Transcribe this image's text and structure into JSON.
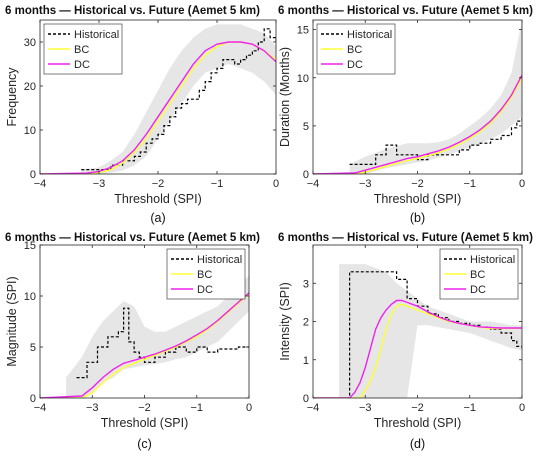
{
  "chart_data": [
    {
      "type": "line",
      "title": "6 months — Historical vs. Future (Aemet 5 km)",
      "xlabel": "Threshold (SPI)",
      "ylabel": "Frequency",
      "caption": "(a)",
      "xlim": [
        -4,
        0
      ],
      "ylim": [
        0,
        35
      ],
      "xticks": [
        -4,
        -3,
        -2,
        -1,
        0
      ],
      "yticks": [
        0,
        10,
        20,
        30
      ],
      "legend_position": "top-left",
      "band": {
        "x": [
          -3.3,
          -3.0,
          -2.8,
          -2.6,
          -2.4,
          -2.2,
          -2.0,
          -1.8,
          -1.6,
          -1.4,
          -1.2,
          -1.0,
          -0.8,
          -0.6,
          -0.4,
          -0.2,
          0.0
        ],
        "upper": [
          1,
          1.5,
          3,
          5,
          9,
          14,
          19,
          24,
          28,
          31,
          33,
          34,
          34,
          34,
          33,
          32,
          29
        ],
        "lower": [
          0,
          0,
          0.3,
          0.8,
          2,
          4,
          8,
          12,
          16,
          20,
          23,
          24,
          25,
          24,
          23,
          21,
          18
        ]
      },
      "series": [
        {
          "name": "Historical",
          "style": "dashed",
          "color": "#000000",
          "step": true,
          "x": [
            -3.3,
            -3.1,
            -2.8,
            -2.6,
            -2.4,
            -2.3,
            -2.2,
            -2.1,
            -2.0,
            -1.9,
            -1.8,
            -1.7,
            -1.6,
            -1.5,
            -1.4,
            -1.3,
            -1.2,
            -1.1,
            -1.0,
            -0.9,
            -0.8,
            -0.7,
            -0.6,
            -0.5,
            -0.4,
            -0.3,
            -0.2,
            -0.1,
            0.0
          ],
          "y": [
            1,
            1,
            2,
            3,
            4,
            5,
            7,
            8,
            9,
            11,
            13,
            15,
            16,
            17,
            17,
            19,
            21,
            23,
            24,
            26,
            26,
            25,
            26,
            27,
            28,
            30,
            33,
            31,
            30
          ]
        },
        {
          "name": "BC",
          "style": "solid",
          "color": "#ffff33",
          "x": [
            -4.0,
            -3.2,
            -3.0,
            -2.8,
            -2.6,
            -2.4,
            -2.2,
            -2.0,
            -1.8,
            -1.6,
            -1.4,
            -1.2,
            -1.0,
            -0.8,
            -0.6,
            -0.4,
            -0.2,
            0.0
          ],
          "y": [
            0,
            0,
            0.3,
            1,
            2.5,
            5,
            8,
            12,
            16,
            20,
            24,
            27,
            29,
            30,
            30,
            29.5,
            28,
            26
          ]
        },
        {
          "name": "DC",
          "style": "solid",
          "color": "#ee22ee",
          "x": [
            -4.0,
            -3.2,
            -3.0,
            -2.8,
            -2.6,
            -2.4,
            -2.2,
            -2.0,
            -1.8,
            -1.6,
            -1.4,
            -1.2,
            -1.0,
            -0.8,
            -0.6,
            -0.4,
            -0.2,
            0.0
          ],
          "y": [
            0,
            0.2,
            0.6,
            1.5,
            3,
            5.5,
            9,
            13,
            17,
            21,
            25,
            28,
            29.5,
            30,
            30,
            29.5,
            28,
            25.5
          ]
        }
      ]
    },
    {
      "type": "line",
      "title": "6 months — Historical vs. Future (Aemet 5 km)",
      "xlabel": "Threshold (SPI)",
      "ylabel": "Duration (Months)",
      "caption": "(b)",
      "xlim": [
        -4,
        0
      ],
      "ylim": [
        0,
        16
      ],
      "xticks": [
        -4,
        -3,
        -2,
        -1,
        0
      ],
      "yticks": [
        0,
        5,
        10,
        15
      ],
      "legend_position": "top-left",
      "band": {
        "x": [
          -3.3,
          -3.0,
          -2.8,
          -2.6,
          -2.4,
          -2.2,
          -2.0,
          -1.8,
          -1.6,
          -1.4,
          -1.2,
          -1.0,
          -0.8,
          -0.6,
          -0.4,
          -0.2,
          0.0
        ],
        "upper": [
          1,
          1.8,
          2.2,
          2.6,
          2.9,
          3.2,
          3.2,
          3.2,
          3.3,
          3.6,
          4.2,
          5,
          5.8,
          6.8,
          8.2,
          10.5,
          16
        ],
        "lower": [
          0,
          0,
          0.3,
          0.6,
          0.8,
          1.0,
          1.2,
          1.4,
          1.7,
          2.0,
          2.4,
          2.8,
          3.2,
          3.6,
          4.2,
          5.0,
          6.0
        ]
      },
      "series": [
        {
          "name": "Historical",
          "style": "dashed",
          "color": "#000000",
          "step": true,
          "x": [
            -3.3,
            -3.0,
            -2.8,
            -2.6,
            -2.4,
            -2.2,
            -2.0,
            -1.8,
            -1.6,
            -1.4,
            -1.2,
            -1.0,
            -0.8,
            -0.6,
            -0.4,
            -0.2,
            -0.1,
            0.0
          ],
          "y": [
            1,
            1,
            2,
            3,
            2,
            2,
            1.5,
            2,
            2,
            2,
            2.5,
            3,
            3.2,
            3.6,
            4,
            4.8,
            5.5,
            6
          ]
        },
        {
          "name": "BC",
          "style": "solid",
          "color": "#ffff33",
          "x": [
            -4.0,
            -3.2,
            -3.0,
            -2.8,
            -2.6,
            -2.4,
            -2.2,
            -2.0,
            -1.8,
            -1.6,
            -1.4,
            -1.2,
            -1.0,
            -0.8,
            -0.6,
            -0.4,
            -0.2,
            0.0
          ],
          "y": [
            0,
            0,
            0.2,
            0.5,
            0.8,
            1.1,
            1.4,
            1.6,
            1.9,
            2.2,
            2.6,
            3.1,
            3.7,
            4.4,
            5.3,
            6.5,
            8.0,
            10.0
          ]
        },
        {
          "name": "DC",
          "style": "solid",
          "color": "#ee22ee",
          "x": [
            -4.0,
            -3.2,
            -3.0,
            -2.8,
            -2.6,
            -2.4,
            -2.2,
            -2.0,
            -1.8,
            -1.6,
            -1.4,
            -1.2,
            -1.0,
            -0.8,
            -0.6,
            -0.4,
            -0.2,
            0.0
          ],
          "y": [
            0,
            0.1,
            0.4,
            0.7,
            1.0,
            1.3,
            1.6,
            1.8,
            2.1,
            2.4,
            2.8,
            3.3,
            3.9,
            4.6,
            5.5,
            6.7,
            8.2,
            10.3
          ]
        }
      ]
    },
    {
      "type": "line",
      "title": "6 months — Historical vs. Future (Aemet 5 km)",
      "xlabel": "Threshold (SPI)",
      "ylabel": "Magnitude (SPI)",
      "caption": "(c)",
      "xlim": [
        -4,
        0
      ],
      "ylim": [
        0,
        15
      ],
      "xticks": [
        -4,
        -3,
        -2,
        -1,
        0
      ],
      "yticks": [
        0,
        5,
        10,
        15
      ],
      "legend_position": "top-right",
      "band": {
        "x": [
          -3.5,
          -3.2,
          -3.0,
          -2.8,
          -2.6,
          -2.4,
          -2.2,
          -2.0,
          -1.8,
          -1.6,
          -1.4,
          -1.2,
          -1.0,
          -0.8,
          -0.6,
          -0.4,
          -0.2,
          0.0
        ],
        "upper": [
          2,
          4,
          6,
          7.5,
          8.5,
          9.5,
          9,
          7,
          6.5,
          6.5,
          7,
          7.5,
          8,
          8.5,
          9,
          10,
          11,
          12
        ],
        "lower": [
          0,
          0,
          0.5,
          1.5,
          2,
          2.8,
          3,
          3.2,
          3.3,
          3.5,
          3.8,
          4,
          4.5,
          5,
          5.5,
          6.5,
          7.5,
          8.5
        ]
      },
      "series": [
        {
          "name": "Historical",
          "style": "dashed",
          "color": "#000000",
          "step": true,
          "x": [
            -3.3,
            -3.1,
            -2.9,
            -2.7,
            -2.5,
            -2.4,
            -2.3,
            -2.2,
            -2.1,
            -2.0,
            -1.8,
            -1.6,
            -1.4,
            -1.2,
            -1.0,
            -0.8,
            -0.6,
            -0.4,
            -0.2,
            0.0
          ],
          "y": [
            2,
            3.5,
            5,
            6,
            6.5,
            8.8,
            5.5,
            4.5,
            4,
            3.5,
            4,
            4.5,
            5,
            4.5,
            5,
            4.5,
            4.8,
            4.8,
            5,
            5
          ]
        },
        {
          "name": "BC",
          "style": "solid",
          "color": "#ffff33",
          "x": [
            -4.0,
            -3.2,
            -3.0,
            -2.8,
            -2.6,
            -2.4,
            -2.2,
            -2.0,
            -1.8,
            -1.6,
            -1.4,
            -1.2,
            -1.0,
            -0.8,
            -0.6,
            -0.4,
            -0.2,
            0.0
          ],
          "y": [
            0,
            0,
            0.5,
            1.5,
            2.3,
            3.0,
            3.4,
            3.8,
            4.2,
            4.6,
            5.0,
            5.5,
            6.0,
            6.7,
            7.5,
            8.4,
            9.3,
            10.2
          ]
        },
        {
          "name": "DC",
          "style": "solid",
          "color": "#ee22ee",
          "x": [
            -4.0,
            -3.2,
            -3.0,
            -2.8,
            -2.6,
            -2.4,
            -2.2,
            -2.0,
            -1.8,
            -1.6,
            -1.4,
            -1.2,
            -1.0,
            -0.8,
            -0.6,
            -0.4,
            -0.2,
            0.0
          ],
          "y": [
            0,
            0.2,
            1.0,
            2.0,
            2.8,
            3.4,
            3.7,
            4.0,
            4.3,
            4.7,
            5.1,
            5.6,
            6.2,
            6.8,
            7.6,
            8.5,
            9.4,
            10.3
          ]
        }
      ]
    },
    {
      "type": "line",
      "title": "6 months — Historical vs. Future (Aemet 5 km)",
      "xlabel": "Threshold (SPI)",
      "ylabel": "Intensity (SPI)",
      "caption": "(d)",
      "xlim": [
        -4,
        0
      ],
      "ylim": [
        0,
        4
      ],
      "xticks": [
        -4,
        -3,
        -2,
        -1,
        0
      ],
      "yticks": [
        0,
        1,
        2,
        3
      ],
      "legend_position": "top-right",
      "band": {
        "x": [
          -3.5,
          -3.3,
          -3.0,
          -2.8,
          -2.6,
          -2.4,
          -2.2,
          -2.0,
          -1.8,
          -1.6,
          -1.4,
          -1.2,
          -1.0,
          -0.8,
          -0.6,
          -0.4,
          -0.2,
          0.0
        ],
        "upper": [
          3.5,
          3.5,
          3.5,
          3.4,
          3.3,
          3.0,
          2.8,
          2.6,
          2.4,
          2.3,
          2.2,
          2.1,
          2.0,
          2.0,
          2.0,
          1.95,
          1.9,
          1.9
        ],
        "lower": [
          0,
          0,
          0,
          0,
          0,
          0,
          0,
          1.9,
          1.9,
          1.85,
          1.8,
          1.75,
          1.7,
          1.6,
          1.5,
          1.4,
          1.3,
          1.25
        ]
      },
      "series": [
        {
          "name": "Historical",
          "style": "dashed",
          "color": "#000000",
          "step": true,
          "x": [
            -3.35,
            -3.3,
            -2.6,
            -2.4,
            -2.2,
            -2.0,
            -1.8,
            -1.6,
            -1.4,
            -1.2,
            -1.0,
            -0.8,
            -0.6,
            -0.4,
            -0.2,
            -0.1,
            0.0
          ],
          "y": [
            0,
            3.3,
            3.3,
            3.1,
            2.6,
            2.4,
            2.2,
            2.1,
            2.0,
            1.95,
            1.9,
            1.85,
            1.8,
            1.7,
            1.5,
            1.35,
            1.3
          ]
        },
        {
          "name": "BC",
          "style": "solid",
          "color": "#ffff33",
          "x": [
            -4.0,
            -3.1,
            -3.0,
            -2.9,
            -2.8,
            -2.7,
            -2.6,
            -2.5,
            -2.4,
            -2.3,
            -2.2,
            -2.0,
            -1.8,
            -1.6,
            -1.4,
            -1.2,
            -1.0,
            -0.8,
            -0.6,
            -0.4,
            -0.2,
            0.0
          ],
          "y": [
            0,
            0,
            0.2,
            0.45,
            0.8,
            1.3,
            1.8,
            2.2,
            2.4,
            2.45,
            2.4,
            2.3,
            2.2,
            2.1,
            2.0,
            1.95,
            1.9,
            1.85,
            1.82,
            1.82,
            1.82,
            1.83
          ]
        },
        {
          "name": "DC",
          "style": "solid",
          "color": "#ee22ee",
          "x": [
            -4.0,
            -3.3,
            -3.2,
            -3.1,
            -3.0,
            -2.9,
            -2.8,
            -2.7,
            -2.6,
            -2.5,
            -2.4,
            -2.3,
            -2.2,
            -2.0,
            -1.8,
            -1.6,
            -1.4,
            -1.2,
            -1.0,
            -0.8,
            -0.6,
            -0.4,
            -0.2,
            0.0
          ],
          "y": [
            0,
            0,
            0.15,
            0.4,
            0.8,
            1.3,
            1.8,
            2.1,
            2.3,
            2.45,
            2.55,
            2.55,
            2.5,
            2.4,
            2.25,
            2.12,
            2.02,
            1.95,
            1.9,
            1.86,
            1.84,
            1.83,
            1.83,
            1.83
          ]
        }
      ]
    }
  ]
}
